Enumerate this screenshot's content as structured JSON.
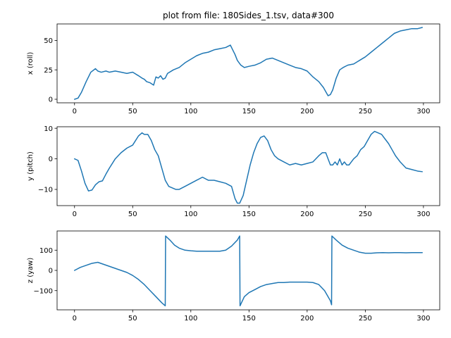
{
  "chart_data": [
    {
      "type": "line",
      "title": "plot from file: 180Sides_1.tsv, data#300",
      "xlabel": "",
      "ylabel": "x (roll)",
      "xlim": [
        -15,
        314
      ],
      "ylim": [
        -3,
        64
      ],
      "xticks": [
        0,
        50,
        100,
        150,
        200,
        250,
        300
      ],
      "yticks": [
        0,
        25,
        50
      ],
      "grid": false,
      "series": [
        {
          "color": "#1f77b4",
          "x": [
            0,
            3,
            6,
            10,
            14,
            18,
            20,
            23,
            27,
            30,
            35,
            40,
            45,
            50,
            55,
            58,
            60,
            62,
            65,
            68,
            70,
            72,
            74,
            76,
            78,
            80,
            85,
            90,
            95,
            100,
            105,
            110,
            115,
            120,
            125,
            130,
            134,
            136,
            138,
            140,
            143,
            146,
            150,
            155,
            160,
            165,
            170,
            175,
            180,
            185,
            190,
            195,
            200,
            205,
            210,
            214,
            218,
            220,
            222,
            225,
            228,
            231,
            235,
            240,
            245,
            250,
            255,
            260,
            265,
            270,
            275,
            280,
            285,
            290,
            295,
            299
          ],
          "y": [
            0,
            1,
            6,
            15,
            23,
            26,
            24,
            23,
            24,
            23,
            24,
            23,
            22,
            23,
            20,
            18,
            17,
            15,
            14,
            12,
            19,
            18,
            20,
            17,
            18,
            22,
            25,
            27,
            31,
            34,
            37,
            39,
            40,
            42,
            43,
            44,
            46,
            42,
            38,
            33,
            29,
            27,
            28,
            29,
            31,
            34,
            35,
            33,
            31,
            29,
            27,
            26,
            24,
            19,
            15,
            10,
            3,
            4,
            8,
            18,
            25,
            27,
            29,
            30,
            33,
            36,
            40,
            44,
            48,
            52,
            56,
            58,
            59,
            60,
            60,
            61
          ]
        }
      ]
    },
    {
      "type": "line",
      "title": "",
      "xlabel": "",
      "ylabel": "y (pitch)",
      "xlim": [
        -15,
        314
      ],
      "ylim": [
        -15.3,
        10.5
      ],
      "xticks": [
        0,
        50,
        100,
        150,
        200,
        250,
        300
      ],
      "yticks": [
        -10,
        0,
        10
      ],
      "grid": false,
      "series": [
        {
          "color": "#1f77b4",
          "x": [
            0,
            3,
            6,
            9,
            12,
            15,
            18,
            21,
            24,
            27,
            30,
            35,
            40,
            45,
            50,
            55,
            58,
            60,
            63,
            66,
            69,
            72,
            75,
            78,
            81,
            84,
            87,
            90,
            95,
            100,
            105,
            110,
            115,
            120,
            125,
            130,
            135,
            138,
            140,
            142,
            145,
            148,
            151,
            154,
            157,
            160,
            163,
            166,
            169,
            172,
            175,
            180,
            185,
            190,
            195,
            200,
            205,
            210,
            213,
            216,
            218,
            220,
            222,
            224,
            226,
            228,
            230,
            232,
            234,
            236,
            238,
            240,
            243,
            246,
            249,
            252,
            255,
            258,
            261,
            264,
            267,
            270,
            273,
            276,
            280,
            285,
            290,
            295,
            299
          ],
          "y": [
            0,
            -0.5,
            -4,
            -8,
            -10.5,
            -10.2,
            -8.5,
            -7.5,
            -7.2,
            -5,
            -3,
            0,
            2,
            3.5,
            4.5,
            7.5,
            8.5,
            8,
            8,
            6,
            3,
            1,
            -3,
            -7,
            -9,
            -9.5,
            -10,
            -10,
            -9,
            -8,
            -7,
            -6,
            -7,
            -7,
            -7.5,
            -8,
            -9,
            -13,
            -14.5,
            -14.5,
            -12,
            -7,
            -2,
            2,
            5,
            7,
            7.5,
            6,
            3,
            1,
            0,
            -1,
            -2,
            -1.5,
            -2,
            -1.5,
            -1,
            1,
            2,
            2,
            0,
            -2,
            -2,
            -1,
            -2,
            0,
            -2,
            -1,
            -2,
            -2,
            -1,
            0,
            1,
            3,
            4,
            6,
            8,
            9,
            8.5,
            8,
            6.5,
            5,
            3,
            1,
            -1,
            -3,
            -3.5,
            -4,
            -4.2
          ]
        }
      ]
    },
    {
      "type": "line",
      "title": "",
      "xlabel": "",
      "ylabel": "z (yaw)",
      "xlim": [
        -15,
        314
      ],
      "ylim": [
        -195,
        195
      ],
      "xticks": [
        0,
        50,
        100,
        150,
        200,
        250,
        300
      ],
      "yticks": [
        -100,
        0,
        100
      ],
      "grid": false,
      "series": [
        {
          "color": "#1f77b4",
          "x": [
            0,
            5,
            10,
            15,
            20,
            25,
            30,
            35,
            40,
            45,
            50,
            55,
            60,
            65,
            70,
            75,
            78,
            78.3,
            82,
            86,
            90,
            95,
            100,
            105,
            110,
            115,
            120,
            125,
            130,
            135,
            140,
            142,
            142.3,
            146,
            150,
            155,
            160,
            165,
            170,
            175,
            180,
            185,
            190,
            195,
            200,
            205,
            210,
            215,
            220,
            221,
            221.3,
            225,
            230,
            235,
            240,
            245,
            250,
            255,
            260,
            265,
            270,
            275,
            280,
            285,
            290,
            295,
            299
          ],
          "y": [
            0,
            15,
            25,
            35,
            40,
            30,
            20,
            10,
            0,
            -10,
            -25,
            -45,
            -70,
            -100,
            -130,
            -160,
            -175,
            170,
            150,
            125,
            110,
            100,
            97,
            95,
            95,
            95,
            95,
            95,
            100,
            120,
            150,
            170,
            -175,
            -130,
            -110,
            -95,
            -80,
            -70,
            -65,
            -60,
            -60,
            -58,
            -58,
            -58,
            -58,
            -60,
            -70,
            -100,
            -150,
            -170,
            170,
            150,
            125,
            110,
            100,
            90,
            85,
            85,
            87,
            88,
            87,
            88,
            88,
            87,
            88,
            88,
            88
          ]
        }
      ]
    }
  ]
}
